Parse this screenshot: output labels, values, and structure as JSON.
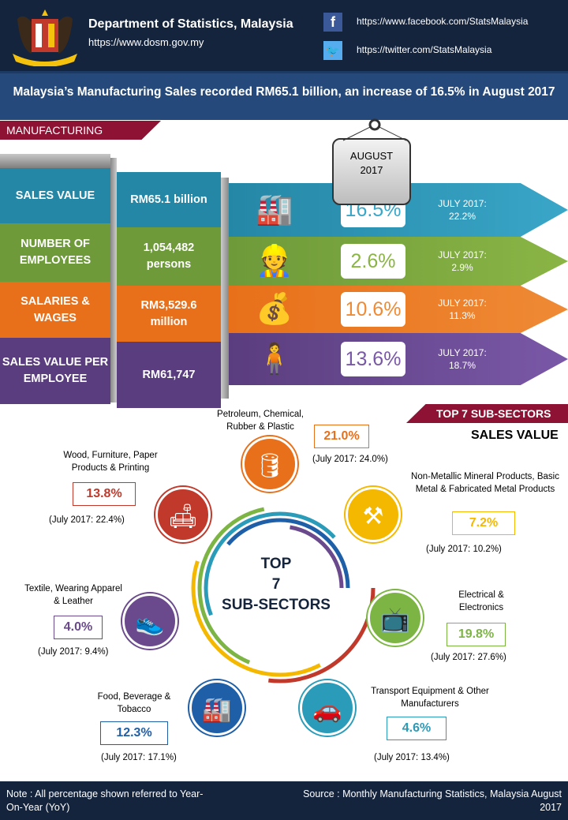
{
  "header": {
    "department": "Department of Statistics, Malaysia",
    "website": "https://www.dosm.gov.my",
    "facebook": "https://www.facebook.com/StatsMalaysia",
    "twitter": "https://twitter.com/StatsMalaysia",
    "icons": [
      "malaysia-coat-of-arms",
      "facebook-icon",
      "twitter-icon"
    ]
  },
  "headline": "Malaysia’s Manufacturing Sales recorded RM65.1 billion, an increase of 16.5% in August 2017",
  "section_tab": "MANUFACTURING",
  "period_tag": {
    "line1": "AUGUST",
    "line2": "2017"
  },
  "indicators": [
    {
      "label": "SALES VALUE",
      "value": "RM65.1 billion",
      "pct": "16.5%",
      "july": "JULY 2017:",
      "july_val": "22.2%",
      "color": "#2587a6",
      "icon": "factory-icon"
    },
    {
      "label": "NUMBER OF EMPLOYEES",
      "value": "1,054,482 persons",
      "pct": "2.6%",
      "july": "JULY 2017:",
      "july_val": "2.9%",
      "color": "#6e9a3a",
      "icon": "workers-icon"
    },
    {
      "label": "SALARIES & WAGES",
      "value": "RM3,529.6 million",
      "pct": "10.6%",
      "july": "JULY 2017:",
      "july_val": "11.3%",
      "color": "#e8701a",
      "icon": "money-bag-icon"
    },
    {
      "label": "SALES VALUE PER EMPLOYEE",
      "value": "RM61,747",
      "pct": "13.6%",
      "july": "JULY 2017:",
      "july_val": "18.7%",
      "color": "#5a3d7e",
      "icon": "conveyor-worker-icon"
    }
  ],
  "subsectors_tab": "TOP 7 SUB-SECTORS",
  "subsectors_subtitle": "SALES VALUE",
  "center_label": {
    "l1": "TOP",
    "l2": "7",
    "l3": "SUB-SECTORS"
  },
  "subsectors": [
    {
      "name": "Petroleum, Chemical, Rubber & Plastic",
      "pct": "21.0%",
      "july": "(July 2017: 24.0%)",
      "color": "#e8701a",
      "icon": "oil-refinery-icon"
    },
    {
      "name": "Non-Metallic Mineral Products, Basic Metal & Fabricated Metal Products",
      "pct": "7.2%",
      "july": "(July 2017: 10.2%)",
      "color": "#f4b800",
      "icon": "metal-products-icon"
    },
    {
      "name": "Electrical & Electronics",
      "pct": "19.8%",
      "july": "(July 2017: 27.6%)",
      "color": "#7db544",
      "icon": "electronics-icon"
    },
    {
      "name": "Transport Equipment & Other Manufacturers",
      "pct": "4.6%",
      "july": "(July 2017: 13.4%)",
      "color": "#2a9bb8",
      "icon": "car-icon"
    },
    {
      "name": "Food, Beverage & Tobacco",
      "pct": "12.3%",
      "july": "(July 2017: 17.1%)",
      "color": "#1e5fa8",
      "icon": "food-factory-icon"
    },
    {
      "name": "Textile, Wearing Apparel & Leather",
      "pct": "4.0%",
      "july": "(July 2017: 9.4%)",
      "color": "#6a4a8c",
      "icon": "sneaker-icon"
    },
    {
      "name": "Wood, Furniture, Paper Products & Printing",
      "pct": "13.8%",
      "july": "(July 2017: 22.4%)",
      "color": "#c0392b",
      "icon": "furniture-icon"
    }
  ],
  "footer": {
    "note": "Note : All percentage shown referred to Year-On-Year (YoY)",
    "source": "Source : Monthly Manufacturing Statistics, Malaysia August 2017"
  }
}
